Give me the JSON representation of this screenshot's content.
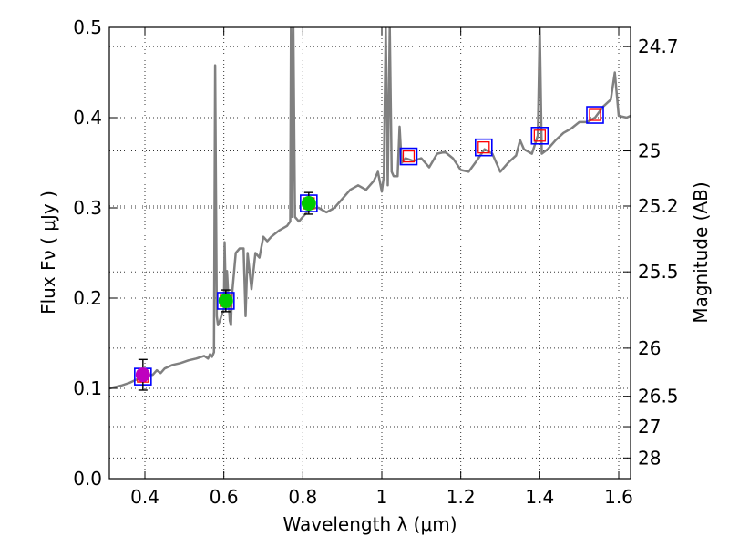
{
  "chart_data": {
    "type": "line",
    "xlabel": "Wavelength  λ (μm)",
    "ylabel": "Flux  Fν  ( μJy )",
    "ylabel_right": "Magnitude (AB)",
    "xlim": [
      0.31,
      1.63
    ],
    "ylim": [
      0.0,
      0.5
    ],
    "grid": true,
    "x_ticks": [
      0.4,
      0.6,
      0.8,
      1.0,
      1.2,
      1.4,
      1.6
    ],
    "x_tick_labels": [
      "0.4",
      "0.6",
      "0.8",
      "1",
      "1.2",
      "1.4",
      "1.6"
    ],
    "y_ticks": [
      0.0,
      0.1,
      0.2,
      0.3,
      0.4,
      0.5
    ],
    "y_tick_labels": [
      "0.0",
      "0.1",
      "0.2",
      "0.3",
      "0.4",
      "0.5"
    ],
    "magnitude_ticks": [
      24.7,
      25.0,
      25.2,
      25.5,
      26.0,
      26.5,
      27.0,
      28.0
    ],
    "magnitude_tick_labels": [
      "24.7",
      "25",
      "25.2",
      "25.5",
      "26",
      "26.5",
      "27",
      "28"
    ],
    "colors": {
      "spectrum": "#808080",
      "box": "#0000ff",
      "model_point": "#ff0000",
      "optical": "#00cc00",
      "uv": "#bf00bf",
      "errorbar": "#000000"
    },
    "series": [
      {
        "name": "model_spectrum",
        "color": "#808080",
        "points": [
          [
            0.31,
            0.1
          ],
          [
            0.32,
            0.101
          ],
          [
            0.34,
            0.103
          ],
          [
            0.36,
            0.106
          ],
          [
            0.38,
            0.11
          ],
          [
            0.4,
            0.114
          ],
          [
            0.42,
            0.115
          ],
          [
            0.43,
            0.12
          ],
          [
            0.44,
            0.117
          ],
          [
            0.45,
            0.122
          ],
          [
            0.47,
            0.126
          ],
          [
            0.49,
            0.128
          ],
          [
            0.51,
            0.131
          ],
          [
            0.53,
            0.133
          ],
          [
            0.55,
            0.136
          ],
          [
            0.56,
            0.133
          ],
          [
            0.565,
            0.138
          ],
          [
            0.57,
            0.135
          ],
          [
            0.575,
            0.14
          ],
          [
            0.578,
            0.458
          ],
          [
            0.582,
            0.18
          ],
          [
            0.585,
            0.17
          ],
          [
            0.59,
            0.175
          ],
          [
            0.595,
            0.182
          ],
          [
            0.6,
            0.188
          ],
          [
            0.602,
            0.262
          ],
          [
            0.605,
            0.2
          ],
          [
            0.608,
            0.23
          ],
          [
            0.612,
            0.195
          ],
          [
            0.615,
            0.175
          ],
          [
            0.618,
            0.17
          ],
          [
            0.62,
            0.2
          ],
          [
            0.63,
            0.25
          ],
          [
            0.64,
            0.255
          ],
          [
            0.65,
            0.255
          ],
          [
            0.655,
            0.18
          ],
          [
            0.66,
            0.25
          ],
          [
            0.67,
            0.21
          ],
          [
            0.68,
            0.25
          ],
          [
            0.69,
            0.245
          ],
          [
            0.7,
            0.268
          ],
          [
            0.71,
            0.263
          ],
          [
            0.72,
            0.268
          ],
          [
            0.74,
            0.275
          ],
          [
            0.76,
            0.28
          ],
          [
            0.768,
            0.285
          ],
          [
            0.77,
            0.5
          ],
          [
            0.773,
            0.29
          ],
          [
            0.776,
            0.5
          ],
          [
            0.78,
            0.29
          ],
          [
            0.79,
            0.285
          ],
          [
            0.8,
            0.29
          ],
          [
            0.82,
            0.3
          ],
          [
            0.84,
            0.3
          ],
          [
            0.86,
            0.295
          ],
          [
            0.88,
            0.3
          ],
          [
            0.9,
            0.31
          ],
          [
            0.92,
            0.32
          ],
          [
            0.94,
            0.325
          ],
          [
            0.96,
            0.32
          ],
          [
            0.98,
            0.33
          ],
          [
            0.99,
            0.34
          ],
          [
            1.0,
            0.318
          ],
          [
            1.005,
            0.335
          ],
          [
            1.01,
            0.5
          ],
          [
            1.015,
            0.325
          ],
          [
            1.02,
            0.5
          ],
          [
            1.025,
            0.34
          ],
          [
            1.03,
            0.335
          ],
          [
            1.04,
            0.335
          ],
          [
            1.045,
            0.39
          ],
          [
            1.05,
            0.35
          ],
          [
            1.06,
            0.355
          ],
          [
            1.08,
            0.352
          ],
          [
            1.1,
            0.355
          ],
          [
            1.12,
            0.345
          ],
          [
            1.14,
            0.36
          ],
          [
            1.16,
            0.362
          ],
          [
            1.18,
            0.355
          ],
          [
            1.2,
            0.342
          ],
          [
            1.22,
            0.34
          ],
          [
            1.24,
            0.352
          ],
          [
            1.26,
            0.365
          ],
          [
            1.28,
            0.36
          ],
          [
            1.3,
            0.34
          ],
          [
            1.32,
            0.35
          ],
          [
            1.34,
            0.358
          ],
          [
            1.35,
            0.375
          ],
          [
            1.36,
            0.365
          ],
          [
            1.38,
            0.36
          ],
          [
            1.395,
            0.38
          ],
          [
            1.4,
            0.5
          ],
          [
            1.405,
            0.36
          ],
          [
            1.42,
            0.365
          ],
          [
            1.44,
            0.375
          ],
          [
            1.46,
            0.383
          ],
          [
            1.48,
            0.388
          ],
          [
            1.5,
            0.395
          ],
          [
            1.52,
            0.395
          ],
          [
            1.54,
            0.4
          ],
          [
            1.56,
            0.412
          ],
          [
            1.58,
            0.42
          ],
          [
            1.59,
            0.45
          ],
          [
            1.6,
            0.402
          ],
          [
            1.62,
            0.4
          ],
          [
            1.63,
            0.402
          ]
        ]
      },
      {
        "name": "model_band_fluxes",
        "color": "#ff0000",
        "points": [
          [
            0.395,
            0.113
          ],
          [
            0.605,
            0.197
          ],
          [
            0.815,
            0.305
          ],
          [
            1.068,
            0.357
          ],
          [
            1.258,
            0.367
          ],
          [
            1.4,
            0.38
          ],
          [
            1.54,
            0.403
          ]
        ]
      },
      {
        "name": "observed_optical",
        "color": "#00cc00",
        "points": [
          {
            "x": 0.605,
            "y": 0.197,
            "yerr": 0.012
          },
          {
            "x": 0.815,
            "y": 0.305,
            "yerr": 0.012
          }
        ]
      },
      {
        "name": "observed_uv",
        "color": "#bf00bf",
        "points": [
          {
            "x": 0.395,
            "y": 0.115,
            "yerr": 0.017
          }
        ]
      }
    ]
  }
}
